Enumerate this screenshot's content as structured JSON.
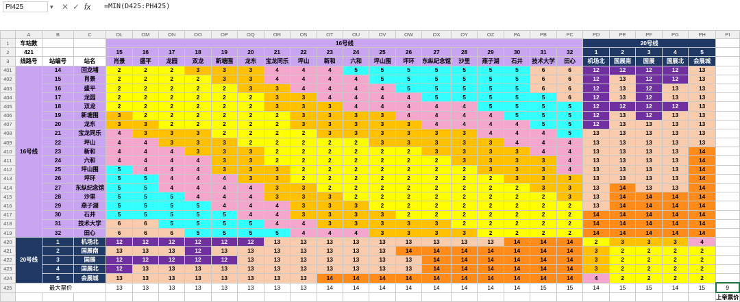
{
  "formula_bar": {
    "cell_ref": "PI425",
    "cancel_icon": "✕",
    "confirm_icon": "✓",
    "fx_icon": "fx",
    "formula": "=MIN(D425:PH425)"
  },
  "sheet": {
    "colors": {
      "2": "#ffd966",
      "3": "#f4b183",
      "4": "#f4a6cc",
      "5": "#33ffff",
      "6": "#f8cbad",
      "12": "#7030a0",
      "13": "#f8cbad",
      "14": "#ff8c1a",
      "y": "#ffff00",
      "o": "#ffc000",
      "d": "#1f3864",
      "p": "#c9a4f0"
    },
    "col_letters": [
      "A",
      "B",
      "C",
      "OL",
      "OM",
      "ON",
      "OO",
      "OP",
      "OQ",
      "OR",
      "OS",
      "OT",
      "OU",
      "OV",
      "OW",
      "OX",
      "OY",
      "OZ",
      "PA",
      "PB",
      "PC",
      "PD",
      "PE",
      "PF",
      "PG",
      "PH",
      "PI"
    ],
    "row_numbers": [
      "1",
      "2",
      "3",
      "401",
      "402",
      "403",
      "404",
      "405",
      "406",
      "407",
      "408",
      "409",
      "410",
      "411",
      "412",
      "413",
      "414",
      "415",
      "416",
      "417",
      "418",
      "419",
      "420",
      "421",
      "422",
      "423",
      "424",
      "425"
    ],
    "header": {
      "a1": "车站数",
      "a2": "421",
      "a3": "线路号",
      "b3": "站编号",
      "c3": "站名",
      "line16_title": "16号线",
      "line20_title": "20号线",
      "station_numbers": [
        "15",
        "16",
        "17",
        "18",
        "19",
        "20",
        "21",
        "22",
        "23",
        "24",
        "25",
        "26",
        "27",
        "28",
        "29",
        "30",
        "31",
        "32",
        "1",
        "2",
        "3",
        "4",
        "5"
      ],
      "station_names": [
        "肖景",
        "盛平",
        "龙园",
        "双龙",
        "新塘围",
        "龙东",
        "宝龙同乐",
        "坪山",
        "新和",
        "六和",
        "坪山围",
        "坪环",
        "东纵纪念馆",
        "沙里",
        "燕子湖",
        "石井",
        "技术大学",
        "田心",
        "机场北",
        "国展南",
        "国展",
        "国展北",
        "会展城"
      ]
    },
    "line_labels": [
      "16号线",
      "20号线"
    ],
    "rows": [
      {
        "no": "14",
        "name": "回龙埔",
        "v": [
          2,
          2,
          2,
          3,
          3,
          3,
          4,
          4,
          4,
          5,
          5,
          5,
          5,
          5,
          5,
          5,
          6,
          6,
          12,
          12,
          12,
          12,
          13
        ]
      },
      {
        "no": "15",
        "name": "肖景",
        "v": [
          2,
          2,
          2,
          2,
          3,
          3,
          4,
          4,
          4,
          4,
          5,
          5,
          5,
          5,
          5,
          5,
          6,
          6,
          12,
          13,
          12,
          12,
          13
        ]
      },
      {
        "no": "16",
        "name": "盛平",
        "v": [
          2,
          2,
          2,
          2,
          2,
          3,
          3,
          4,
          4,
          4,
          4,
          5,
          5,
          5,
          5,
          5,
          6,
          6,
          12,
          13,
          12,
          13,
          13
        ]
      },
      {
        "no": "17",
        "name": "龙园",
        "v": [
          2,
          2,
          2,
          2,
          2,
          2,
          3,
          3,
          4,
          4,
          4,
          4,
          5,
          5,
          5,
          5,
          5,
          6,
          12,
          13,
          12,
          13,
          13
        ]
      },
      {
        "no": "18",
        "name": "双龙",
        "v": [
          2,
          2,
          2,
          2,
          2,
          2,
          3,
          3,
          3,
          4,
          4,
          4,
          4,
          4,
          5,
          5,
          5,
          5,
          12,
          12,
          12,
          12,
          13
        ]
      },
      {
        "no": "19",
        "name": "新塘围",
        "v": [
          3,
          2,
          2,
          2,
          2,
          2,
          2,
          3,
          3,
          3,
          3,
          4,
          4,
          4,
          4,
          5,
          5,
          5,
          12,
          13,
          12,
          13,
          13
        ]
      },
      {
        "no": "20",
        "name": "龙东",
        "v": [
          3,
          3,
          2,
          2,
          2,
          2,
          2,
          3,
          3,
          3,
          3,
          3,
          4,
          4,
          4,
          4,
          5,
          5,
          12,
          13,
          13,
          13,
          13
        ]
      },
      {
        "no": "21",
        "name": "宝龙同乐",
        "v": [
          4,
          3,
          3,
          3,
          2,
          2,
          2,
          2,
          3,
          3,
          3,
          3,
          3,
          3,
          4,
          4,
          4,
          5,
          13,
          13,
          13,
          13,
          13
        ]
      },
      {
        "no": "22",
        "name": "坪山",
        "v": [
          4,
          4,
          3,
          3,
          3,
          2,
          2,
          2,
          2,
          2,
          3,
          3,
          3,
          3,
          3,
          4,
          4,
          4,
          13,
          13,
          13,
          13,
          13
        ]
      },
      {
        "no": "23",
        "name": "新和",
        "v": [
          4,
          4,
          4,
          3,
          3,
          3,
          2,
          2,
          2,
          2,
          2,
          2,
          3,
          3,
          3,
          3,
          4,
          4,
          13,
          13,
          13,
          13,
          14
        ]
      },
      {
        "no": "24",
        "name": "六和",
        "v": [
          4,
          4,
          4,
          4,
          3,
          3,
          2,
          2,
          2,
          2,
          2,
          2,
          2,
          3,
          3,
          3,
          3,
          4,
          13,
          13,
          13,
          13,
          14
        ]
      },
      {
        "no": "25",
        "name": "坪山围",
        "v": [
          5,
          4,
          4,
          4,
          3,
          3,
          3,
          2,
          2,
          2,
          2,
          2,
          2,
          2,
          3,
          3,
          3,
          4,
          13,
          13,
          13,
          13,
          14
        ]
      },
      {
        "no": "26",
        "name": "坪环",
        "v": [
          5,
          5,
          4,
          4,
          4,
          3,
          3,
          2,
          2,
          2,
          2,
          2,
          2,
          2,
          2,
          3,
          3,
          3,
          13,
          13,
          13,
          13,
          14
        ]
      },
      {
        "no": "27",
        "name": "东纵纪念馆",
        "v": [
          5,
          5,
          4,
          4,
          4,
          4,
          3,
          3,
          2,
          2,
          2,
          2,
          2,
          2,
          2,
          2,
          3,
          3,
          13,
          14,
          13,
          13,
          14
        ]
      },
      {
        "no": "28",
        "name": "沙里",
        "v": [
          5,
          5,
          5,
          4,
          4,
          4,
          3,
          3,
          3,
          2,
          2,
          2,
          2,
          2,
          2,
          2,
          2,
          3,
          13,
          14,
          14,
          14,
          14
        ]
      },
      {
        "no": "29",
        "name": "燕子湖",
        "v": [
          5,
          5,
          5,
          5,
          4,
          4,
          4,
          3,
          3,
          3,
          2,
          2,
          2,
          2,
          2,
          2,
          2,
          2,
          13,
          14,
          14,
          14,
          14
        ]
      },
      {
        "no": "30",
        "name": "石井",
        "v": [
          5,
          5,
          5,
          5,
          5,
          4,
          4,
          3,
          3,
          3,
          3,
          2,
          2,
          2,
          2,
          2,
          2,
          2,
          14,
          14,
          14,
          14,
          14
        ]
      },
      {
        "no": "31",
        "name": "技术大学",
        "v": [
          6,
          6,
          5,
          5,
          5,
          5,
          4,
          4,
          3,
          3,
          3,
          3,
          3,
          2,
          2,
          2,
          2,
          2,
          14,
          14,
          14,
          14,
          14
        ]
      },
      {
        "no": "32",
        "name": "田心",
        "v": [
          6,
          6,
          6,
          5,
          5,
          5,
          5,
          4,
          4,
          4,
          3,
          3,
          3,
          3,
          2,
          2,
          2,
          2,
          14,
          14,
          14,
          14,
          14
        ]
      },
      {
        "no": "1",
        "name": "机场北",
        "v": [
          12,
          12,
          12,
          12,
          12,
          12,
          13,
          13,
          13,
          13,
          13,
          13,
          13,
          13,
          13,
          14,
          14,
          14,
          2,
          3,
          3,
          3,
          4
        ]
      },
      {
        "no": "2",
        "name": "国展南",
        "v": [
          13,
          13,
          13,
          12,
          13,
          13,
          13,
          13,
          13,
          13,
          13,
          14,
          14,
          14,
          14,
          14,
          14,
          14,
          3,
          2,
          2,
          2,
          2
        ]
      },
      {
        "no": "3",
        "name": "国展",
        "v": [
          12,
          12,
          12,
          12,
          12,
          13,
          13,
          13,
          13,
          13,
          13,
          13,
          14,
          14,
          14,
          14,
          14,
          14,
          3,
          2,
          2,
          2,
          2
        ]
      },
      {
        "no": "4",
        "name": "国展北",
        "v": [
          12,
          13,
          13,
          13,
          13,
          13,
          13,
          13,
          13,
          13,
          13,
          13,
          14,
          14,
          14,
          14,
          14,
          14,
          3,
          2,
          2,
          2,
          2
        ]
      },
      {
        "no": "5",
        "name": "会展城",
        "v": [
          13,
          13,
          13,
          13,
          13,
          13,
          13,
          13,
          14,
          14,
          14,
          14,
          14,
          14,
          14,
          14,
          14,
          14,
          4,
          2,
          2,
          2,
          2
        ]
      }
    ],
    "max_row": {
      "label": "最大票价",
      "values": [
        "13",
        "13",
        "13",
        "13",
        "13",
        "13",
        "13",
        "13",
        "14",
        "14",
        "14",
        "14",
        "14",
        "14",
        "14",
        "14",
        "15",
        "15",
        "14",
        "15",
        "15",
        "14",
        "15"
      ],
      "pi_value": "9",
      "pi_label": "上帝票价"
    }
  }
}
